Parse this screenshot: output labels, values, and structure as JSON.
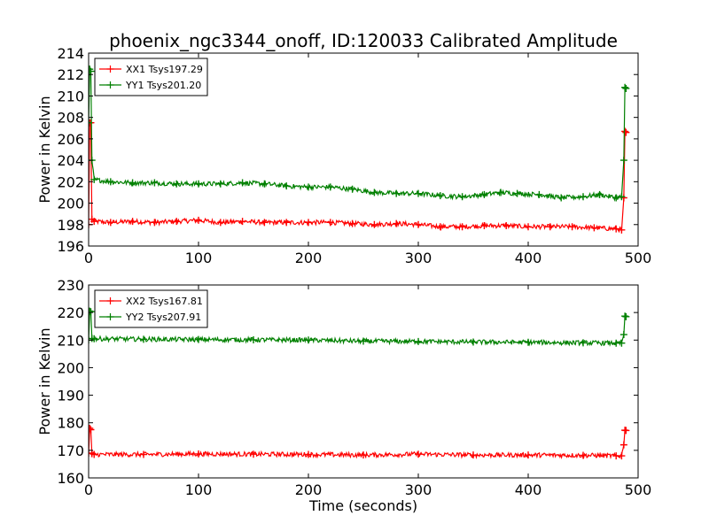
{
  "figure": {
    "title": "phoenix_ngc3344_onoff, ID:120033 Calibrated Amplitude"
  },
  "chart_data": [
    {
      "type": "line",
      "title": "phoenix_ngc3344_onoff, ID:120033 Calibrated Amplitude",
      "xlabel": "",
      "ylabel": "Power in Kelvin",
      "xlim": [
        0,
        500
      ],
      "ylim": [
        196,
        214
      ],
      "xticks": [
        0,
        100,
        200,
        300,
        400,
        500
      ],
      "yticks": [
        196,
        198,
        200,
        202,
        204,
        206,
        208,
        210,
        212,
        214
      ],
      "grid": false,
      "legend_position": "top-left",
      "series": [
        {
          "name": "XX1 Tsys197.29",
          "color": "#ff0000",
          "marker": "+",
          "x": [
            0,
            1,
            2,
            3,
            5,
            20,
            40,
            60,
            80,
            100,
            120,
            140,
            160,
            180,
            200,
            220,
            240,
            260,
            280,
            300,
            320,
            340,
            360,
            380,
            400,
            420,
            440,
            460,
            480,
            485,
            487,
            488,
            489
          ],
          "values": [
            198.0,
            207.5,
            207.5,
            198.5,
            198.3,
            198.2,
            198.3,
            198.2,
            198.3,
            198.4,
            198.2,
            198.3,
            198.2,
            198.2,
            198.2,
            198.2,
            198.1,
            198.0,
            198.1,
            198.0,
            197.8,
            197.8,
            197.9,
            197.9,
            197.8,
            197.8,
            197.8,
            197.7,
            197.6,
            197.5,
            200.5,
            206.7,
            206.6
          ]
        },
        {
          "name": "YY1 Tsys201.20",
          "color": "#008000",
          "marker": "+",
          "x": [
            0,
            1,
            2,
            3,
            5,
            20,
            40,
            60,
            80,
            100,
            120,
            140,
            160,
            180,
            200,
            220,
            240,
            260,
            280,
            300,
            320,
            340,
            360,
            375,
            390,
            410,
            430,
            450,
            465,
            480,
            485,
            487,
            488,
            489
          ],
          "values": [
            207.5,
            212.5,
            212.3,
            204.0,
            202.2,
            202.0,
            201.9,
            201.9,
            201.8,
            201.8,
            201.8,
            201.9,
            201.8,
            201.6,
            201.5,
            201.5,
            201.3,
            201.0,
            200.9,
            200.9,
            200.7,
            200.6,
            200.8,
            201.0,
            200.9,
            200.8,
            200.5,
            200.6,
            200.8,
            200.5,
            200.6,
            204.0,
            210.8,
            210.7
          ]
        }
      ]
    },
    {
      "type": "line",
      "title": "",
      "xlabel": "Time (seconds)",
      "ylabel": "Power in Kelvin",
      "xlim": [
        0,
        500
      ],
      "ylim": [
        160,
        230
      ],
      "xticks": [
        0,
        100,
        200,
        300,
        400,
        500
      ],
      "yticks": [
        160,
        170,
        180,
        190,
        200,
        210,
        220,
        230
      ],
      "grid": false,
      "legend_position": "top-left",
      "series": [
        {
          "name": "XX2 Tsys167.81",
          "color": "#ff0000",
          "marker": "+",
          "x": [
            0,
            1,
            2,
            3,
            5,
            50,
            100,
            150,
            200,
            250,
            300,
            350,
            400,
            450,
            480,
            485,
            487,
            488,
            489
          ],
          "values": [
            169.0,
            178.0,
            177.5,
            168.8,
            168.5,
            168.5,
            168.7,
            168.6,
            168.5,
            168.3,
            168.6,
            168.3,
            168.3,
            168.2,
            168.0,
            168.0,
            172.0,
            177.3,
            177.2
          ]
        },
        {
          "name": "YY2 Tsys207.91",
          "color": "#008000",
          "marker": "+",
          "x": [
            0,
            1,
            2,
            3,
            5,
            50,
            100,
            150,
            200,
            250,
            300,
            350,
            400,
            450,
            480,
            485,
            487,
            488,
            489
          ],
          "values": [
            210.0,
            220.5,
            220.3,
            210.6,
            210.5,
            210.3,
            210.2,
            210.1,
            210.0,
            209.6,
            209.5,
            209.3,
            209.2,
            209.0,
            208.9,
            208.9,
            212.0,
            218.7,
            218.5
          ]
        }
      ]
    }
  ]
}
